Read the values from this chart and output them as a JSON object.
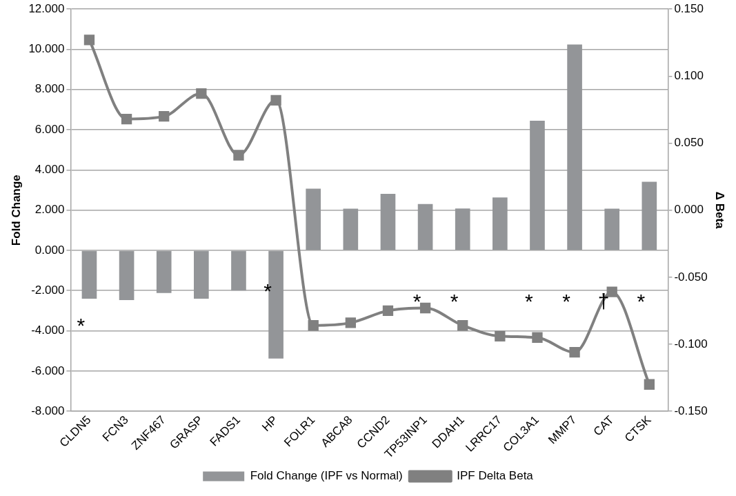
{
  "chart_data": {
    "type": "bar",
    "categories": [
      "CLDN5",
      "FCN3",
      "ZNF467",
      "GRASP",
      "FADS1",
      "HP",
      "FOLR1",
      "ABCA8",
      "CCND2",
      "TP53INP1",
      "DDAH1",
      "LRRC17",
      "COL3A1",
      "MMP7",
      "CAT",
      "CTSK"
    ],
    "series": [
      {
        "name": "Fold Change (IPF vs Normal)",
        "color": "#939598",
        "values": [
          -2.4,
          -2.47,
          -2.12,
          -2.4,
          -2.0,
          -5.38,
          3.07,
          2.07,
          2.81,
          2.31,
          2.08,
          2.63,
          6.45,
          10.24,
          2.07,
          3.41
        ]
      },
      {
        "name": "IPF Delta Beta",
        "type": "line",
        "axis": "y2",
        "color": "#808080",
        "values": [
          0.127,
          0.068,
          0.07,
          0.087,
          0.041,
          0.082,
          -0.086,
          -0.084,
          -0.075,
          -0.073,
          -0.086,
          -0.094,
          -0.095,
          -0.106,
          -0.061,
          -0.13
        ]
      }
    ],
    "ylabel": "Fold Change",
    "y2label": "Δ Beta",
    "ylim": [
      -8,
      12
    ],
    "yticks": [
      {
        "value": -8,
        "label": "-8.000"
      },
      {
        "value": -6,
        "label": "-6.000"
      },
      {
        "value": -4,
        "label": "-4.000"
      },
      {
        "value": -2,
        "label": "-2.000"
      },
      {
        "value": 0,
        "label": "0.000"
      },
      {
        "value": 2,
        "label": "2.000"
      },
      {
        "value": 4,
        "label": "4.000"
      },
      {
        "value": 6,
        "label": "6.000"
      },
      {
        "value": 8,
        "label": "8.000"
      },
      {
        "value": 10,
        "label": "10.000"
      },
      {
        "value": 12,
        "label": "12.000"
      }
    ],
    "y2lim": [
      -0.15,
      0.15
    ],
    "y2ticks": [
      {
        "value": -0.15,
        "label": "-0.150"
      },
      {
        "value": -0.1,
        "label": "-0.100"
      },
      {
        "value": -0.05,
        "label": "-0.050"
      },
      {
        "value": 0,
        "label": "0.000"
      },
      {
        "value": 0.05,
        "label": "0.050"
      },
      {
        "value": 0.1,
        "label": "0.100"
      },
      {
        "value": 0.15,
        "label": "0.150"
      }
    ],
    "annotations": [
      "*",
      "*",
      "*",
      "*",
      "*",
      "*",
      "†",
      "*"
    ],
    "grid": "y",
    "legend": "bottom",
    "marker": "square",
    "line_style": "solid"
  }
}
